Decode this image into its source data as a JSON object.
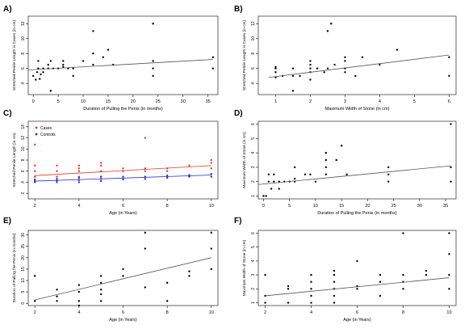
{
  "chart_data": [
    {
      "panel": "A)",
      "type": "scatter",
      "xlabel": "Duration of Pulling the Penis (in months)",
      "ylabel": "Stretched Penile Length in Cases (in cm)",
      "xlim": [
        -1,
        37
      ],
      "ylim": [
        2.5,
        13
      ],
      "xticks": [
        0,
        5,
        10,
        15,
        20,
        25,
        30,
        35
      ],
      "yticks": [
        4,
        6,
        8,
        10,
        12
      ],
      "points": [
        [
          0,
          5
        ],
        [
          0.5,
          4.5
        ],
        [
          0.8,
          5.5
        ],
        [
          1,
          6
        ],
        [
          1,
          7
        ],
        [
          1.3,
          4.6
        ],
        [
          1.5,
          5.2
        ],
        [
          2,
          6
        ],
        [
          2,
          5.5
        ],
        [
          3,
          6
        ],
        [
          3,
          6.5
        ],
        [
          3.5,
          7
        ],
        [
          3.5,
          3
        ],
        [
          4,
          6
        ],
        [
          5,
          6
        ],
        [
          6,
          6.2
        ],
        [
          6,
          7
        ],
        [
          6,
          6.5
        ],
        [
          7,
          6
        ],
        [
          8,
          5
        ],
        [
          8,
          6
        ],
        [
          10,
          7
        ],
        [
          12,
          6.5
        ],
        [
          12,
          11
        ],
        [
          12,
          8
        ],
        [
          14,
          7.5
        ],
        [
          15,
          8.5
        ],
        [
          16,
          6.5
        ],
        [
          24,
          12
        ],
        [
          24,
          5
        ],
        [
          24,
          7
        ],
        [
          24,
          6
        ],
        [
          36,
          7.5
        ],
        [
          36,
          6
        ]
      ],
      "trend": [
        [
          -1,
          5.8
        ],
        [
          36,
          7.2
        ]
      ],
      "grid": false
    },
    {
      "panel": "B)",
      "type": "scatter",
      "xlabel": "Maximum Width of Stone (in cm)",
      "ylabel": "Stretched Penile Length in Cases (in cm)",
      "xlim": [
        0.5,
        6.2
      ],
      "ylim": [
        2.5,
        13
      ],
      "xticks": [
        1,
        2,
        3,
        4,
        5,
        6
      ],
      "yticks": [
        4,
        6,
        8,
        10,
        12
      ],
      "points": [
        [
          1,
          4.8
        ],
        [
          1,
          5.5
        ],
        [
          1,
          6
        ],
        [
          1,
          6.2
        ],
        [
          1.2,
          5
        ],
        [
          1.5,
          3
        ],
        [
          1.5,
          5
        ],
        [
          1.5,
          6
        ],
        [
          1.7,
          5
        ],
        [
          2,
          5.5
        ],
        [
          2,
          6
        ],
        [
          2,
          6.5
        ],
        [
          2,
          7
        ],
        [
          2,
          4.5
        ],
        [
          2.2,
          6
        ],
        [
          2.4,
          5.5
        ],
        [
          2.5,
          6
        ],
        [
          2.5,
          11
        ],
        [
          2.6,
          12
        ],
        [
          2.7,
          6.5
        ],
        [
          3,
          6
        ],
        [
          3,
          7
        ],
        [
          3,
          7.5
        ],
        [
          3,
          5.5
        ],
        [
          3.3,
          5
        ],
        [
          3.5,
          7.5
        ],
        [
          4,
          6.5
        ],
        [
          4.5,
          8.5
        ],
        [
          6,
          7.5
        ],
        [
          6,
          5
        ]
      ],
      "trend": [
        [
          0.8,
          4.8
        ],
        [
          6,
          7.8
        ]
      ],
      "grid": false
    },
    {
      "panel": "C)",
      "type": "scatter",
      "xlabel": "Age (in Years)",
      "ylabel": "Stretched Penile Length (in cm)",
      "xlim": [
        1.7,
        10.3
      ],
      "ylim": [
        1,
        15
      ],
      "xticks": [
        2,
        4,
        6,
        8,
        10
      ],
      "yticks": [
        2,
        4,
        6,
        8,
        10,
        12,
        14
      ],
      "legend": [
        "Cases",
        "Controls"
      ],
      "legend_position": "top-left",
      "series": [
        {
          "name": "Cases",
          "color": "#e8352a",
          "points": [
            [
              2,
              5
            ],
            [
              2,
              6
            ],
            [
              2,
              7
            ],
            [
              2,
              10.8
            ],
            [
              3,
              5
            ],
            [
              3,
              6
            ],
            [
              3,
              7
            ],
            [
              4,
              5
            ],
            [
              4,
              6
            ],
            [
              4,
              6.5
            ],
            [
              4,
              7
            ],
            [
              5,
              5
            ],
            [
              5,
              6
            ],
            [
              5,
              7
            ],
            [
              5,
              7.5
            ],
            [
              6,
              6
            ],
            [
              6,
              6.5
            ],
            [
              7,
              6
            ],
            [
              7,
              6.5
            ],
            [
              7,
              12
            ],
            [
              8,
              6
            ],
            [
              8,
              6.5
            ],
            [
              9,
              7
            ],
            [
              10,
              6.5
            ],
            [
              10,
              7.5
            ],
            [
              10,
              8
            ]
          ],
          "trend": [
            [
              2,
              5.2
            ],
            [
              10,
              7
            ]
          ]
        },
        {
          "name": "Controls",
          "color": "#2233cc",
          "points": [
            [
              2,
              4
            ],
            [
              2,
              4.2
            ],
            [
              2,
              4.5
            ],
            [
              3,
              4
            ],
            [
              3,
              4.3
            ],
            [
              3,
              4.6
            ],
            [
              4,
              4
            ],
            [
              4,
              4.4
            ],
            [
              4,
              4.8
            ],
            [
              5,
              4.2
            ],
            [
              5,
              4.6
            ],
            [
              5,
              5
            ],
            [
              6,
              4.5
            ],
            [
              6,
              5
            ],
            [
              7,
              4.6
            ],
            [
              7,
              5
            ],
            [
              8,
              4.8
            ],
            [
              8,
              5.2
            ],
            [
              9,
              5
            ],
            [
              9,
              5.3
            ],
            [
              10,
              5
            ],
            [
              10,
              5.5
            ]
          ],
          "trend": [
            [
              2,
              4.2
            ],
            [
              10,
              5.3
            ]
          ]
        }
      ],
      "grid": false
    },
    {
      "panel": "D)",
      "type": "scatter",
      "xlabel": "Duration of Pulling the Penis (in months)",
      "ylabel": "Maximum Width of Stone (in cm)",
      "xlim": [
        -1,
        37
      ],
      "ylim": [
        0.8,
        6.2
      ],
      "xticks": [
        0,
        5,
        10,
        15,
        20,
        25,
        30,
        35
      ],
      "yticks": [
        1,
        2,
        3,
        4,
        5,
        6
      ],
      "points": [
        [
          0,
          1
        ],
        [
          0.5,
          1
        ],
        [
          1,
          2
        ],
        [
          1,
          2.5
        ],
        [
          1.5,
          1.5
        ],
        [
          2,
          2
        ],
        [
          2,
          2.5
        ],
        [
          3,
          1.5
        ],
        [
          3,
          2
        ],
        [
          4,
          2
        ],
        [
          5,
          2
        ],
        [
          6,
          2
        ],
        [
          6,
          2.2
        ],
        [
          6,
          3
        ],
        [
          8,
          2.5
        ],
        [
          9,
          2.5
        ],
        [
          10,
          2
        ],
        [
          12,
          3
        ],
        [
          12,
          3.5
        ],
        [
          12,
          2.5
        ],
        [
          12,
          4
        ],
        [
          14,
          3.5
        ],
        [
          15,
          4.5
        ],
        [
          16,
          2.5
        ],
        [
          24,
          2.5
        ],
        [
          24,
          3
        ],
        [
          24,
          2
        ],
        [
          36,
          6
        ],
        [
          36,
          3
        ],
        [
          36,
          2
        ]
      ],
      "trend": [
        [
          -1,
          1.8
        ],
        [
          36,
          3.1
        ]
      ],
      "grid": false
    },
    {
      "panel": "E)",
      "type": "scatter",
      "xlabel": "Age (in Years)",
      "ylabel": "Duration of Pulling the Penis (in months)",
      "xlim": [
        1.7,
        10.3
      ],
      "ylim": [
        -1,
        32
      ],
      "xticks": [
        2,
        4,
        6,
        8,
        10
      ],
      "yticks": [
        0,
        5,
        10,
        15,
        20,
        25,
        30
      ],
      "points": [
        [
          2,
          1
        ],
        [
          2,
          12
        ],
        [
          3,
          3
        ],
        [
          3,
          6
        ],
        [
          3,
          1
        ],
        [
          4,
          1
        ],
        [
          4,
          5
        ],
        [
          4,
          8
        ],
        [
          4,
          -1
        ],
        [
          5,
          1
        ],
        [
          5,
          4
        ],
        [
          5,
          6
        ],
        [
          5,
          9
        ],
        [
          5,
          12
        ],
        [
          6,
          12
        ],
        [
          6,
          15
        ],
        [
          7,
          7
        ],
        [
          7,
          24
        ],
        [
          7,
          31
        ],
        [
          8,
          1
        ],
        [
          8,
          9
        ],
        [
          9,
          12
        ],
        [
          9,
          14
        ],
        [
          10,
          15
        ],
        [
          10,
          24
        ],
        [
          10,
          31
        ]
      ],
      "trend": [
        [
          2,
          1.5
        ],
        [
          10,
          20
        ]
      ],
      "grid": false
    },
    {
      "panel": "F)",
      "type": "scatter",
      "xlabel": "Age (in Years)",
      "ylabel": "Maximum Width of Stone (in cm)",
      "xlim": [
        1.7,
        10.3
      ],
      "ylim": [
        0.8,
        6.2
      ],
      "xticks": [
        2,
        4,
        6,
        8,
        10
      ],
      "yticks": [
        1,
        2,
        3,
        4,
        5,
        6
      ],
      "points": [
        [
          2,
          1.5
        ],
        [
          2,
          3
        ],
        [
          2,
          1
        ],
        [
          3,
          2
        ],
        [
          3,
          2.2
        ],
        [
          3,
          1
        ],
        [
          4,
          1
        ],
        [
          4,
          1.5
        ],
        [
          4,
          2
        ],
        [
          4,
          2.5
        ],
        [
          4,
          3
        ],
        [
          5,
          1
        ],
        [
          5,
          1.5
        ],
        [
          5,
          2
        ],
        [
          5,
          2.5
        ],
        [
          5,
          3
        ],
        [
          5,
          3.3
        ],
        [
          6,
          2
        ],
        [
          6,
          2.2
        ],
        [
          6,
          4
        ],
        [
          7,
          1.5
        ],
        [
          7,
          2.5
        ],
        [
          7,
          3
        ],
        [
          8,
          2
        ],
        [
          8,
          2.5
        ],
        [
          8,
          3
        ],
        [
          8,
          6
        ],
        [
          9,
          3
        ],
        [
          9,
          3.3
        ],
        [
          10,
          2
        ],
        [
          10,
          3
        ],
        [
          10,
          4.5
        ],
        [
          10,
          6
        ]
      ],
      "trend": [
        [
          2,
          1.5
        ],
        [
          10,
          2.8
        ]
      ],
      "grid": false
    }
  ]
}
